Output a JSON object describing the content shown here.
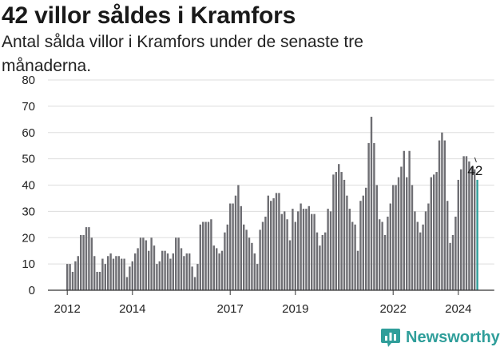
{
  "title": "42 villor såldes i Kramfors",
  "subtitle": "Antal sålda villor i Kramfors under de senaste tre månaderna.",
  "brand": {
    "name": "Newsworthy",
    "icon": "bar-chart-logo-icon",
    "color": "#2f9e9a"
  },
  "colors": {
    "bar": "#6e6e73",
    "highlight": "#2f9e9a",
    "axis": "#333333",
    "grid": "#dddddd"
  },
  "chart_data": {
    "type": "bar",
    "title": "42 villor såldes i Kramfors",
    "subtitle": "Antal sålda villor i Kramfors under de senaste tre månaderna.",
    "xlabel": "",
    "ylabel": "",
    "ylim": [
      0,
      80
    ],
    "yticks": [
      0,
      10,
      20,
      30,
      40,
      50,
      60,
      70,
      80
    ],
    "grid": true,
    "x_start": "2012-01",
    "x_interval": "month",
    "xtick_labels": [
      {
        "label": "2012",
        "index": 0
      },
      {
        "label": "2014",
        "index": 24
      },
      {
        "label": "2017",
        "index": 60
      },
      {
        "label": "2019",
        "index": 84
      },
      {
        "label": "2022",
        "index": 120
      },
      {
        "label": "2024",
        "index": 144
      }
    ],
    "highlight_last": true,
    "last_value_label": "42",
    "values": [
      10,
      10,
      7,
      11,
      13,
      21,
      21,
      24,
      24,
      20,
      13,
      7,
      7,
      12,
      10,
      13,
      14,
      12,
      13,
      13,
      12,
      12,
      5,
      9,
      11,
      14,
      16,
      20,
      20,
      19,
      15,
      20,
      17,
      10,
      11,
      15,
      15,
      14,
      12,
      14,
      20,
      20,
      16,
      13,
      14,
      14,
      9,
      5,
      10,
      25,
      26,
      26,
      26,
      27,
      17,
      16,
      14,
      15,
      22,
      25,
      33,
      33,
      36,
      40,
      32,
      25,
      23,
      20,
      18,
      14,
      10,
      23,
      26,
      28,
      36,
      34,
      35,
      37,
      37,
      29,
      30,
      27,
      19,
      31,
      26,
      30,
      33,
      31,
      31,
      32,
      29,
      29,
      22,
      17,
      21,
      22,
      31,
      30,
      44,
      45,
      48,
      45,
      42,
      36,
      31,
      26,
      25,
      15,
      34,
      36,
      39,
      56,
      66,
      56,
      40,
      27,
      26,
      21,
      28,
      33,
      40,
      40,
      43,
      47,
      53,
      43,
      53,
      40,
      30,
      26,
      22,
      25,
      30,
      33,
      43,
      44,
      45,
      57,
      60,
      57,
      34,
      18,
      21,
      28,
      42,
      46,
      51,
      51,
      49,
      47,
      46,
      42
    ]
  }
}
